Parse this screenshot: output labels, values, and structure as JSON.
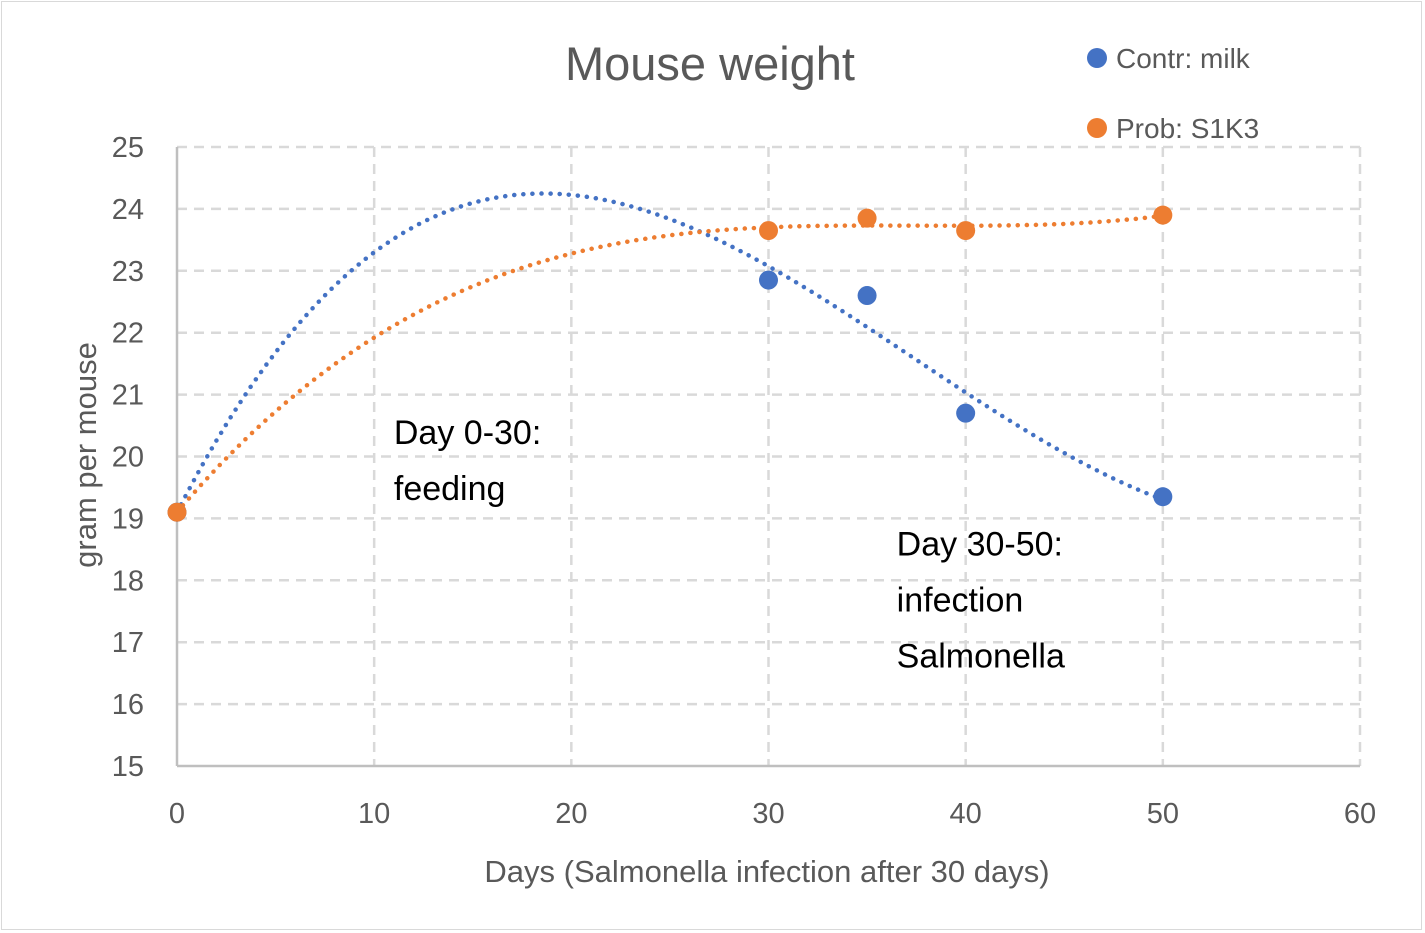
{
  "chart_data": {
    "type": "scatter",
    "title": "Mouse weight",
    "xlabel": "Days (Salmonella infection after 30 days)",
    "ylabel": "gram per mouse",
    "xlim": [
      0,
      60
    ],
    "ylim": [
      15,
      25
    ],
    "x_ticks": [
      0,
      10,
      20,
      30,
      40,
      50,
      60
    ],
    "y_ticks": [
      15,
      16,
      17,
      18,
      19,
      20,
      21,
      22,
      23,
      24,
      25
    ],
    "grid": true,
    "grid_style": "dashed",
    "legend_position": "top-right",
    "trendline": "polynomial, dotted",
    "series": [
      {
        "name": "Contr: milk",
        "color": "#4472c4",
        "points": [
          {
            "x": 0,
            "y": 19.1
          },
          {
            "x": 30,
            "y": 22.85
          },
          {
            "x": 35,
            "y": 22.6
          },
          {
            "x": 40,
            "y": 20.7
          },
          {
            "x": 50,
            "y": 19.35
          }
        ]
      },
      {
        "name": "Prob: S1K3",
        "color": "#ed7d31",
        "points": [
          {
            "x": 0,
            "y": 19.1
          },
          {
            "x": 30,
            "y": 23.65
          },
          {
            "x": 35,
            "y": 23.85
          },
          {
            "x": 40,
            "y": 23.65
          },
          {
            "x": 50,
            "y": 23.9
          }
        ]
      }
    ],
    "annotations": [
      {
        "lines": [
          "Day 0-30:",
          "feeding"
        ],
        "x": 11,
        "y": 20.2
      },
      {
        "lines": [
          "Day 30-50:",
          "infection",
          "Salmonella"
        ],
        "x": 36.5,
        "y": 18.4
      }
    ]
  }
}
